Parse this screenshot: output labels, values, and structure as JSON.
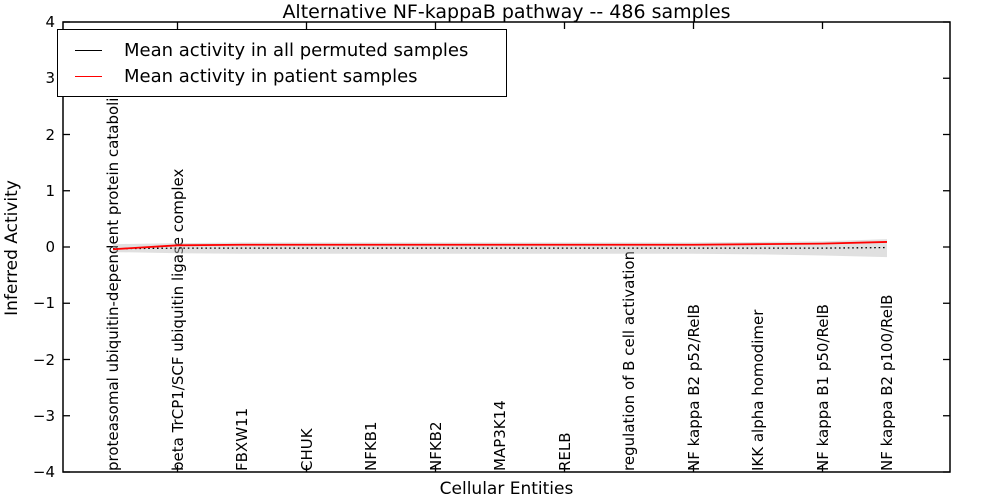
{
  "figure": {
    "title": "Alternative NF-kappaB pathway -- 486 samples",
    "xlabel": "Cellular Entities",
    "ylabel": "Inferred Activity"
  },
  "chart_data": {
    "type": "line",
    "title": "Alternative NF-kappaB pathway -- 486 samples",
    "xlabel": "Cellular Entities",
    "ylabel": "Inferred Activity",
    "ylim": [
      -4,
      4
    ],
    "grid": false,
    "legend_position": "upper left",
    "yticks": [
      {
        "value": 4,
        "label": "4"
      },
      {
        "value": 3,
        "label": "3"
      },
      {
        "value": 2,
        "label": "2"
      },
      {
        "value": 1,
        "label": "1"
      },
      {
        "value": 0,
        "label": "0"
      },
      {
        "value": -1,
        "label": "−1"
      },
      {
        "value": -2,
        "label": "−2"
      },
      {
        "value": -3,
        "label": "−3"
      },
      {
        "value": -4,
        "label": "−4"
      }
    ],
    "categories": [
      "proteasomal ubiquitin-dependent protein catabolic pr",
      "beta TrCP1/SCF ubiquitin ligase complex",
      "FBXW11",
      "CHUK",
      "NFKB1",
      "NFKB2",
      "MAP3K14",
      "RELB",
      "regulation of B cell activation",
      "NF kappa B2 p52/RelB",
      "IKK alpha homodimer",
      "NF kappa B1 p50/RelB",
      "NF kappa B2 p100/RelB"
    ],
    "series": [
      {
        "name": "Mean activity in all permuted samples",
        "color": "#000000",
        "style": "dotted",
        "values": [
          -0.03,
          -0.02,
          -0.02,
          -0.02,
          -0.02,
          -0.02,
          -0.02,
          -0.02,
          -0.02,
          -0.02,
          -0.02,
          -0.02,
          -0.01
        ]
      },
      {
        "name": "Mean activity in patient samples",
        "color": "#ff0000",
        "style": "solid",
        "values": [
          -0.04,
          0.03,
          0.04,
          0.04,
          0.04,
          0.04,
          0.04,
          0.04,
          0.04,
          0.04,
          0.05,
          0.06,
          0.09
        ]
      }
    ],
    "band": {
      "color": "#bbbbbb",
      "upper": [
        0.05,
        0.07,
        0.08,
        0.08,
        0.08,
        0.08,
        0.08,
        0.08,
        0.08,
        0.08,
        0.09,
        0.1,
        0.14
      ],
      "lower": [
        -0.09,
        -0.11,
        -0.12,
        -0.12,
        -0.12,
        -0.12,
        -0.12,
        -0.12,
        -0.12,
        -0.12,
        -0.13,
        -0.15,
        -0.18
      ]
    }
  }
}
